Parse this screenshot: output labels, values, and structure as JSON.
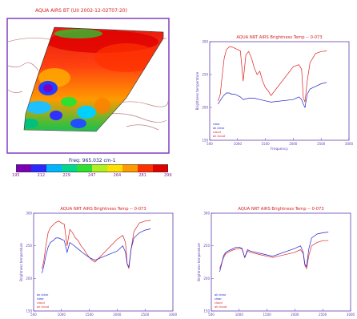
{
  "map_panel": {
    "title": "AQUA AIRS BT (UII 2002-12-02T07:20)",
    "colorbar": {
      "label": "Freq: 965.032 cm-1",
      "tick_labels": [
        "195",
        "212",
        "229",
        "247",
        "264",
        "281",
        "299"
      ],
      "colors": [
        "#7a00b8",
        "#2a2aff",
        "#00b4ff",
        "#00d890",
        "#30e030",
        "#b0f020",
        "#ffe000",
        "#ff9a00",
        "#ff3000",
        "#e00000"
      ]
    }
  },
  "chart_data": [
    {
      "type": "line",
      "title": "AQUA NRT AIRS Brightness Temp -- 0-073",
      "xlabel": "Frequency",
      "ylabel": "Brightness temperature",
      "xlim": [
        500,
        3000
      ],
      "ylim": [
        150,
        300
      ],
      "x_ticks": [
        "500",
        "1000",
        "1500",
        "2000",
        "2500",
        "3000"
      ],
      "y_ticks": [
        "150",
        "200",
        "250",
        "300"
      ],
      "legend_position": "bottom-left",
      "legend": [
        "clear",
        "ak clear",
        "cloud",
        "ak cloud"
      ],
      "series": [
        {
          "name": "cloud",
          "color": "#e02020",
          "x": [
            650,
            690,
            720,
            760,
            800,
            850,
            900,
            950,
            1000,
            1050,
            1100,
            1150,
            1200,
            1250,
            1300,
            1350,
            1400,
            1450,
            1500,
            1550,
            1600,
            2000,
            2100,
            2150,
            2180,
            2210,
            2250,
            2300,
            2400,
            2500,
            2600
          ],
          "y": [
            210,
            220,
            245,
            275,
            288,
            292,
            292,
            290,
            288,
            286,
            240,
            280,
            285,
            275,
            260,
            250,
            255,
            240,
            230,
            225,
            218,
            262,
            265,
            258,
            215,
            208,
            240,
            268,
            282,
            285,
            286
          ]
        },
        {
          "name": "clear",
          "color": "#2020d0",
          "x": [
            650,
            700,
            750,
            800,
            850,
            900,
            950,
            1000,
            1050,
            1100,
            1200,
            1300,
            1400,
            1500,
            1600,
            2000,
            2100,
            2150,
            2180,
            2210,
            2250,
            2300,
            2400,
            2500,
            2600
          ],
          "y": [
            205,
            212,
            218,
            222,
            222,
            220,
            220,
            218,
            216,
            212,
            214,
            214,
            212,
            210,
            208,
            212,
            216,
            212,
            205,
            200,
            220,
            228,
            232,
            236,
            238
          ]
        }
      ]
    },
    {
      "type": "line",
      "title": "AQUA NRT AIRS Brightness Temp -- 0-073",
      "xlabel": "",
      "ylabel": "Brightness temperature",
      "xlim": [
        500,
        3000
      ],
      "ylim": [
        150,
        300
      ],
      "x_ticks": [
        "500",
        "1000",
        "1500",
        "2000",
        "2500",
        "3000"
      ],
      "y_ticks": [
        "150",
        "200",
        "250",
        "300"
      ],
      "legend_position": "bottom-left",
      "legend": [
        "ak clear",
        "clear",
        "cloud",
        "ak cloud"
      ],
      "series": [
        {
          "name": "cloud",
          "color": "#e02020",
          "x": [
            650,
            680,
            720,
            760,
            800,
            850,
            900,
            950,
            1000,
            1050,
            1100,
            1150,
            1200,
            1250,
            1300,
            1350,
            1400,
            1450,
            1500,
            1550,
            1600,
            2000,
            2100,
            2150,
            2180,
            2210,
            2250,
            2300,
            2400,
            2500,
            2600
          ],
          "y": [
            215,
            225,
            250,
            270,
            278,
            282,
            286,
            288,
            285,
            283,
            250,
            275,
            270,
            262,
            258,
            250,
            245,
            238,
            232,
            228,
            225,
            260,
            266,
            255,
            222,
            215,
            245,
            272,
            285,
            288,
            289
          ]
        },
        {
          "name": "clear",
          "color": "#2020d0",
          "x": [
            650,
            680,
            720,
            760,
            800,
            850,
            900,
            950,
            1000,
            1050,
            1100,
            1150,
            1200,
            1300,
            1400,
            1500,
            1600,
            2000,
            2100,
            2150,
            2180,
            2210,
            2250,
            2300,
            2400,
            2500,
            2600
          ],
          "y": [
            208,
            218,
            235,
            248,
            255,
            258,
            262,
            262,
            260,
            258,
            240,
            255,
            252,
            245,
            238,
            232,
            228,
            242,
            250,
            240,
            222,
            218,
            245,
            262,
            270,
            274,
            276
          ]
        }
      ]
    },
    {
      "type": "line",
      "title": "AQUA NRT AIRS Brightness Temp -- 0-073",
      "xlabel": "",
      "ylabel": "Brightness temperature",
      "xlim": [
        500,
        3000
      ],
      "ylim": [
        150,
        300
      ],
      "x_ticks": [
        "500",
        "1000",
        "1500",
        "2000",
        "2500",
        "3000"
      ],
      "y_ticks": [
        "150",
        "200",
        "250",
        "300"
      ],
      "legend_position": "bottom-left",
      "legend": [
        "ak clear",
        "clear",
        "cloud",
        "ak cloud"
      ],
      "series": [
        {
          "name": "cloud",
          "color": "#e02020",
          "x": [
            650,
            680,
            720,
            760,
            800,
            850,
            900,
            950,
            1000,
            1050,
            1100,
            1150,
            1200,
            1300,
            1400,
            1500,
            1600,
            2000,
            2100,
            2150,
            2180,
            2210,
            2250,
            2300,
            2400,
            2500,
            2600
          ],
          "y": [
            215,
            222,
            232,
            238,
            240,
            242,
            244,
            245,
            246,
            245,
            232,
            242,
            240,
            238,
            236,
            234,
            232,
            240,
            244,
            238,
            220,
            215,
            235,
            250,
            255,
            258,
            258
          ]
        },
        {
          "name": "clear",
          "color": "#2020d0",
          "x": [
            650,
            680,
            720,
            760,
            800,
            850,
            900,
            950,
            1000,
            1050,
            1100,
            1150,
            1200,
            1300,
            1400,
            1500,
            1600,
            2000,
            2100,
            2150,
            2180,
            2210,
            2250,
            2300,
            2400,
            2500,
            2600
          ],
          "y": [
            210,
            220,
            235,
            240,
            242,
            244,
            246,
            248,
            248,
            246,
            232,
            244,
            242,
            240,
            238,
            236,
            234,
            246,
            250,
            240,
            222,
            218,
            245,
            262,
            268,
            270,
            271
          ]
        }
      ]
    }
  ]
}
